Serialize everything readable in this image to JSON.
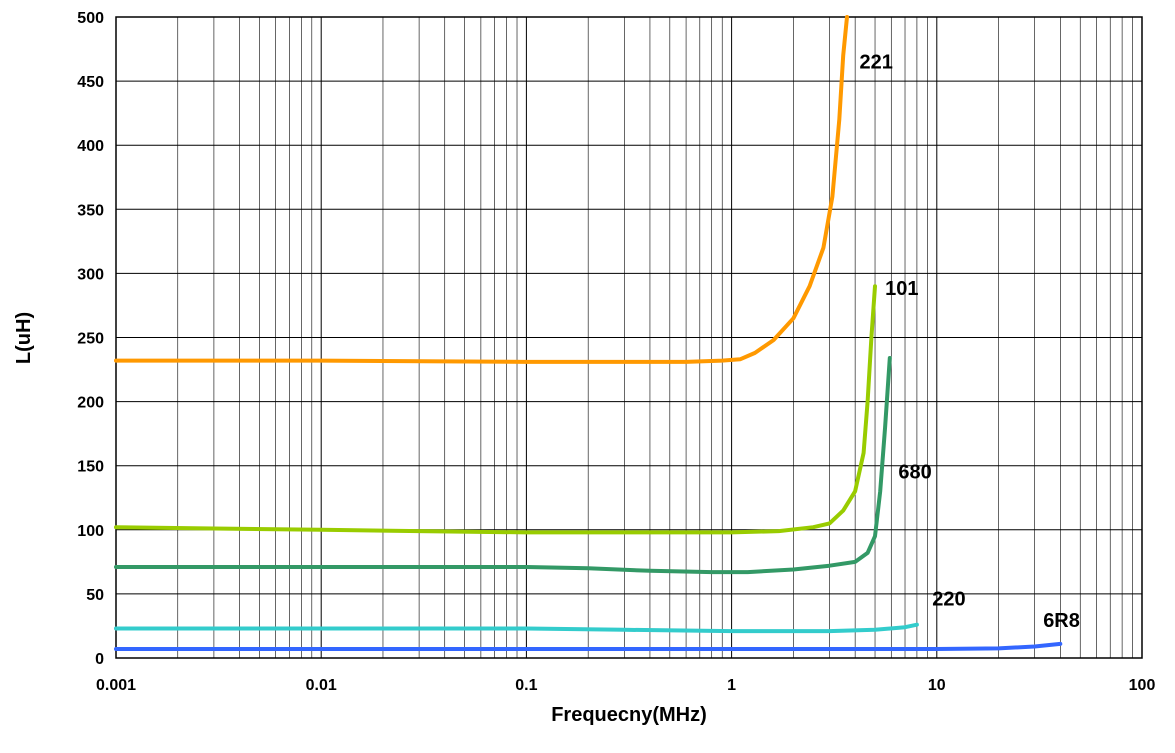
{
  "chart_data": {
    "type": "line",
    "xlabel": "Frequecny(MHz)",
    "ylabel": "L(uH)",
    "x_scale": "log",
    "xlim": [
      0.001,
      100
    ],
    "ylim": [
      0,
      500
    ],
    "x_ticks": [
      "0.001",
      "0.01",
      "0.1",
      "1",
      "10",
      "100"
    ],
    "y_ticks": [
      "0",
      "50",
      "100",
      "150",
      "200",
      "250",
      "300",
      "350",
      "400",
      "450",
      "500"
    ],
    "grid": true,
    "legend": "none",
    "series": [
      {
        "name": "221",
        "color": "#FF9900",
        "points": [
          [
            0.001,
            232
          ],
          [
            0.01,
            232
          ],
          [
            0.1,
            231
          ],
          [
            0.3,
            231
          ],
          [
            0.6,
            231
          ],
          [
            0.9,
            232
          ],
          [
            1.1,
            233
          ],
          [
            1.3,
            238
          ],
          [
            1.6,
            248
          ],
          [
            2.0,
            265
          ],
          [
            2.4,
            290
          ],
          [
            2.8,
            320
          ],
          [
            3.1,
            360
          ],
          [
            3.35,
            420
          ],
          [
            3.5,
            470
          ],
          [
            3.65,
            500
          ]
        ]
      },
      {
        "name": "101",
        "color": "#99CC00",
        "points": [
          [
            0.001,
            102
          ],
          [
            0.003,
            101
          ],
          [
            0.01,
            100
          ],
          [
            0.03,
            99
          ],
          [
            0.1,
            98
          ],
          [
            0.3,
            98
          ],
          [
            1.0,
            98
          ],
          [
            1.7,
            99
          ],
          [
            2.5,
            102
          ],
          [
            3.0,
            105
          ],
          [
            3.5,
            115
          ],
          [
            4.0,
            130
          ],
          [
            4.4,
            160
          ],
          [
            4.6,
            200
          ],
          [
            4.8,
            250
          ],
          [
            5.0,
            290
          ]
        ]
      },
      {
        "name": "680",
        "color": "#339966",
        "points": [
          [
            0.001,
            71
          ],
          [
            0.01,
            71
          ],
          [
            0.1,
            71
          ],
          [
            0.2,
            70
          ],
          [
            0.4,
            68
          ],
          [
            0.8,
            67
          ],
          [
            1.2,
            67
          ],
          [
            2.0,
            69
          ],
          [
            3.0,
            72
          ],
          [
            4.0,
            75
          ],
          [
            4.6,
            82
          ],
          [
            5.0,
            95
          ],
          [
            5.3,
            130
          ],
          [
            5.6,
            180
          ],
          [
            5.9,
            234
          ]
        ]
      },
      {
        "name": "220",
        "color": "#33CCCC",
        "points": [
          [
            0.001,
            23
          ],
          [
            0.01,
            23
          ],
          [
            0.1,
            23
          ],
          [
            0.3,
            22
          ],
          [
            1.0,
            21
          ],
          [
            3.0,
            21
          ],
          [
            5.0,
            22
          ],
          [
            7.0,
            24
          ],
          [
            8.0,
            26
          ]
        ]
      },
      {
        "name": "6R8",
        "color": "#3366FF",
        "points": [
          [
            0.001,
            7
          ],
          [
            0.01,
            7
          ],
          [
            0.1,
            7
          ],
          [
            1.0,
            7
          ],
          [
            10.0,
            7
          ],
          [
            20.0,
            7.5
          ],
          [
            30.0,
            9
          ],
          [
            40.0,
            11
          ]
        ]
      }
    ],
    "annotations": [
      {
        "text": "221",
        "x": 4.2,
        "y": 460
      },
      {
        "text": "101",
        "x": 5.6,
        "y": 283
      },
      {
        "text": "680",
        "x": 6.5,
        "y": 140
      },
      {
        "text": "220",
        "x": 9.5,
        "y": 41
      },
      {
        "text": "6R8",
        "x": 33.0,
        "y": 24
      }
    ]
  }
}
